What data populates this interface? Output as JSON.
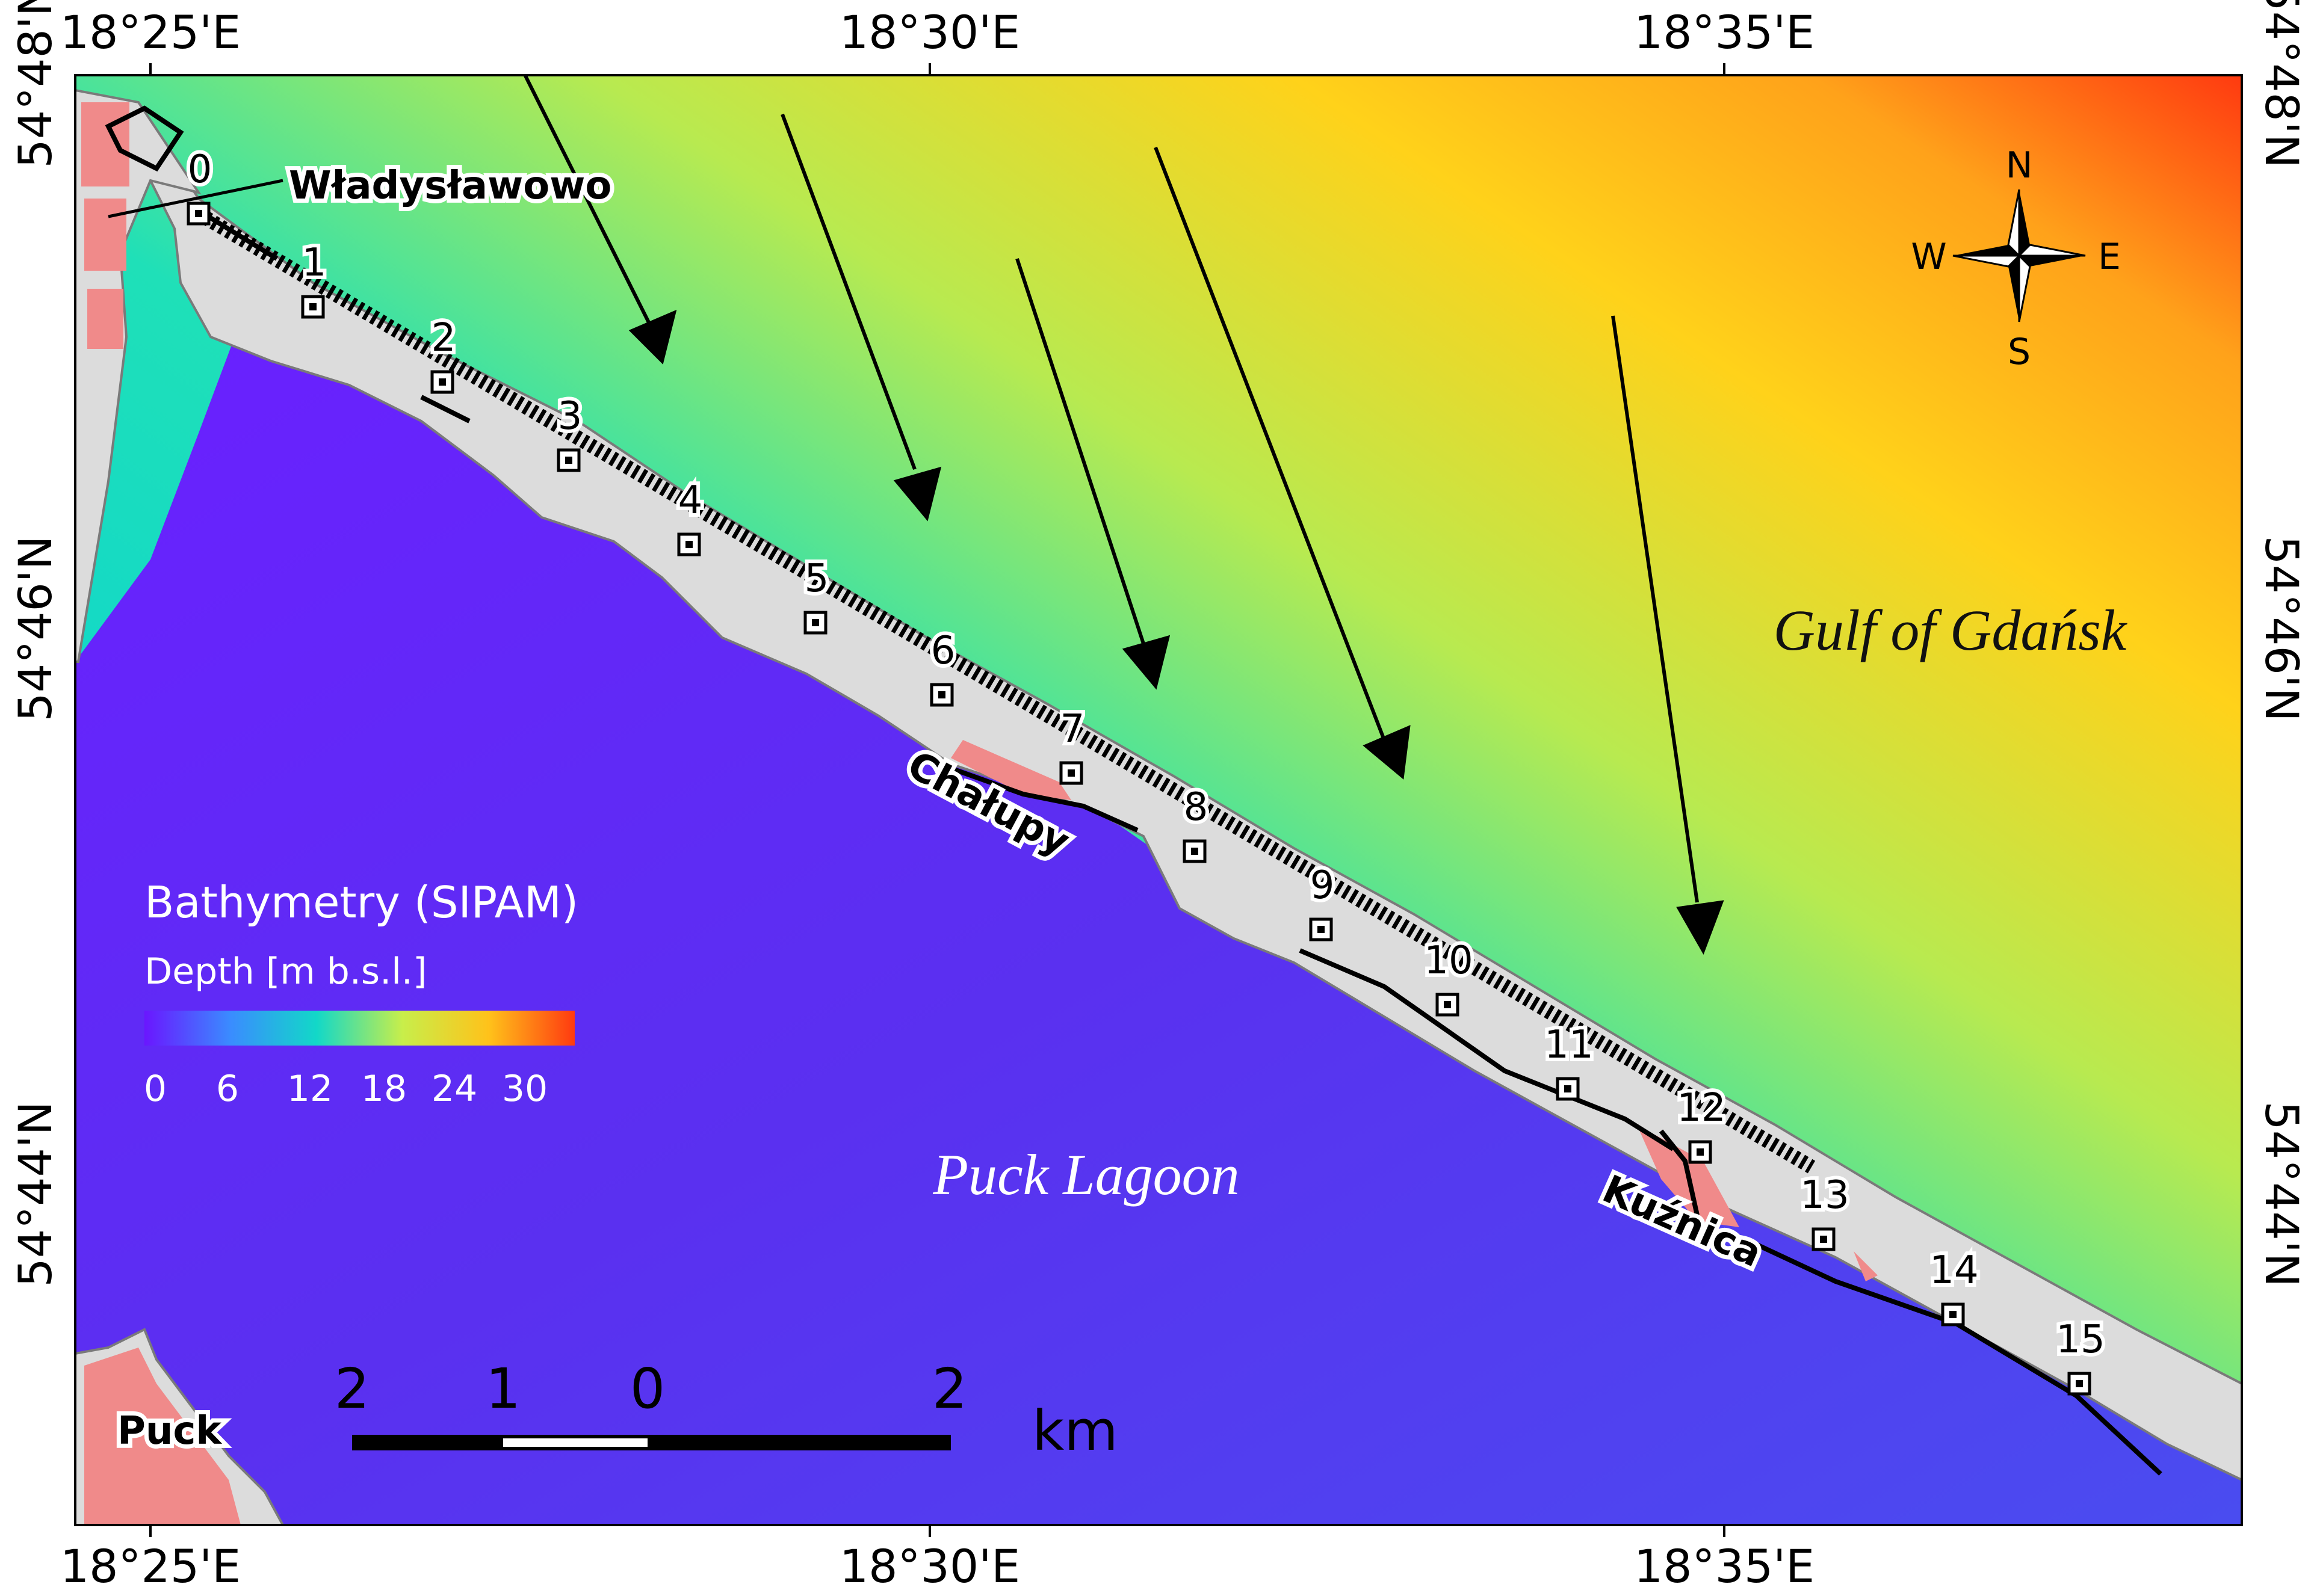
{
  "map": {
    "coordinates": {
      "top_lon": [
        "18°25'E",
        "18°30'E",
        "18°35'E"
      ],
      "bottom_lon": [
        "18°25'E",
        "18°30'E",
        "18°35'E"
      ],
      "left_lat": [
        "54°48'N",
        "54°46'N",
        "54°44'N"
      ],
      "right_lat": [
        "54°48'N",
        "54°46'N",
        "54°44'N"
      ]
    },
    "places": {
      "wladyslawowo": "Władysławowo",
      "chalupy": "Chałupy",
      "kuznica": "Kuźnica",
      "puck": "Puck"
    },
    "water_bodies": {
      "gulf": "Gulf of Gdańsk",
      "lagoon": "Puck Lagoon"
    },
    "profiles": [
      "0",
      "1",
      "2",
      "3",
      "4",
      "5",
      "6",
      "7",
      "8",
      "9",
      "10",
      "11",
      "12",
      "13",
      "14",
      "15"
    ],
    "compass": {
      "n": "N",
      "s": "S",
      "e": "E",
      "w": "W"
    },
    "legend": {
      "title": "Bathymetry (SIPAM)",
      "subtitle": "Depth [m b.s.l.]",
      "ticks": [
        "0",
        "6",
        "12",
        "18",
        "24",
        "30"
      ],
      "colors": [
        "#6a16ff",
        "#3a8cff",
        "#12d8c8",
        "#c8ee4a",
        "#ffc21a",
        "#ff3a10"
      ]
    },
    "scale_bar": {
      "labels": [
        "2",
        "1",
        "0",
        "2"
      ],
      "unit": "km"
    },
    "colors": {
      "land": "#dcdcdc",
      "urban": "#f08a8a",
      "lagoon": "#5a32ee",
      "shore_line": "#000000"
    }
  }
}
